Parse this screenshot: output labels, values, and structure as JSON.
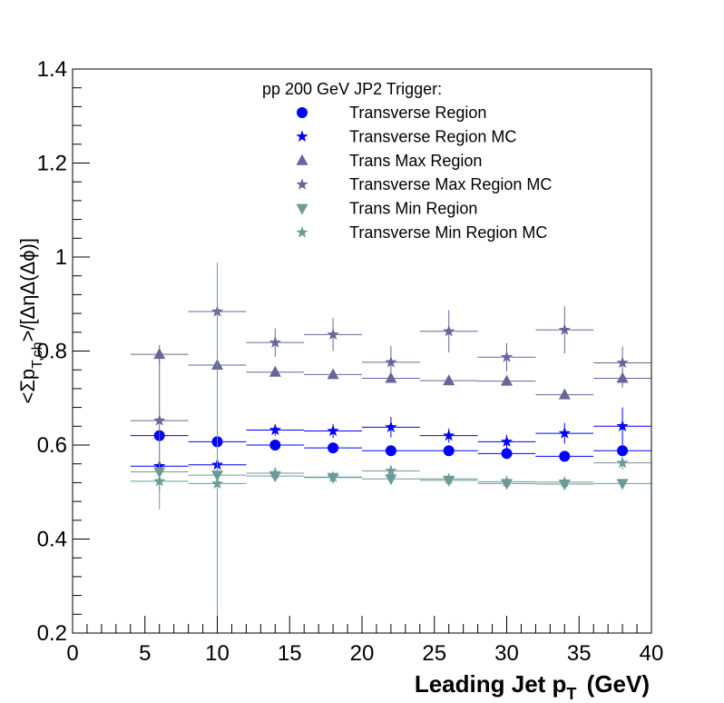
{
  "chart_data": {
    "type": "scatter",
    "title": "",
    "xlabel": "Leading Jet p",
    "xlabel_sub": "T",
    "xlabel_unit": "(GeV)",
    "ylabel": "<Σp",
    "ylabel_sub": "T,ch",
    "ylabel_rest": ">/[ΔηΔ(Δϕ)]",
    "xlim": [
      0,
      40
    ],
    "ylim": [
      0.2,
      1.4
    ],
    "x_ticks": [
      "0",
      "5",
      "10",
      "15",
      "20",
      "25",
      "30",
      "35",
      "40"
    ],
    "y_ticks": [
      "0.2",
      "0.4",
      "0.6",
      "0.8",
      "1",
      "1.2",
      "1.4"
    ],
    "grid": false,
    "legend_position": "top-center",
    "legend_title": "pp 200 GeV JP2 Trigger:",
    "series": [
      {
        "name": "Transverse Region",
        "marker": "circle",
        "color": "#0000ff",
        "points": [
          {
            "x": 6,
            "y": 0.62,
            "xerr": 2,
            "yerr": 0.01
          },
          {
            "x": 10,
            "y": 0.607,
            "xerr": 2,
            "yerr": 0.008
          },
          {
            "x": 14,
            "y": 0.6,
            "xerr": 2,
            "yerr": 0.006
          },
          {
            "x": 18,
            "y": 0.594,
            "xerr": 2,
            "yerr": 0.005
          },
          {
            "x": 22,
            "y": 0.588,
            "xerr": 2,
            "yerr": 0.005
          },
          {
            "x": 26,
            "y": 0.588,
            "xerr": 2,
            "yerr": 0.005
          },
          {
            "x": 30,
            "y": 0.582,
            "xerr": 2,
            "yerr": 0.005
          },
          {
            "x": 34,
            "y": 0.576,
            "xerr": 2,
            "yerr": 0.005
          },
          {
            "x": 38,
            "y": 0.588,
            "xerr": 2,
            "yerr": 0.006
          }
        ]
      },
      {
        "name": "Transverse Region MC",
        "marker": "star",
        "color": "#0000ff",
        "points": [
          {
            "x": 6,
            "y": 0.555,
            "xerr": 2,
            "yerr": 0.01
          },
          {
            "x": 10,
            "y": 0.558,
            "xerr": 2,
            "yerr": 0.012
          },
          {
            "x": 14,
            "y": 0.632,
            "xerr": 2,
            "yerr": 0.012
          },
          {
            "x": 18,
            "y": 0.63,
            "xerr": 2,
            "yerr": 0.015
          },
          {
            "x": 22,
            "y": 0.638,
            "xerr": 2,
            "yerr": 0.022
          },
          {
            "x": 26,
            "y": 0.62,
            "xerr": 2,
            "yerr": 0.015
          },
          {
            "x": 30,
            "y": 0.607,
            "xerr": 2,
            "yerr": 0.015
          },
          {
            "x": 34,
            "y": 0.625,
            "xerr": 2,
            "yerr": 0.022
          },
          {
            "x": 38,
            "y": 0.64,
            "xerr": 2,
            "yerr": 0.04
          }
        ]
      },
      {
        "name": "Trans Max Region",
        "marker": "triangle-up",
        "color": "#66669a",
        "points": [
          {
            "x": 6,
            "y": 0.793,
            "xerr": 2,
            "yerr": 0.02
          },
          {
            "x": 10,
            "y": 0.77,
            "xerr": 2,
            "yerr": 0.012
          },
          {
            "x": 14,
            "y": 0.755,
            "xerr": 2,
            "yerr": 0.008
          },
          {
            "x": 18,
            "y": 0.75,
            "xerr": 2,
            "yerr": 0.007
          },
          {
            "x": 22,
            "y": 0.742,
            "xerr": 2,
            "yerr": 0.007
          },
          {
            "x": 26,
            "y": 0.737,
            "xerr": 2,
            "yerr": 0.007
          },
          {
            "x": 30,
            "y": 0.736,
            "xerr": 2,
            "yerr": 0.007
          },
          {
            "x": 34,
            "y": 0.707,
            "xerr": 2,
            "yerr": 0.008
          },
          {
            "x": 38,
            "y": 0.742,
            "xerr": 2,
            "yerr": 0.02
          }
        ]
      },
      {
        "name": "Transverse Max Region MC",
        "marker": "star",
        "color": "#66669a",
        "points": [
          {
            "x": 6,
            "y": 0.652,
            "xerr": 2,
            "yerr": 0.15
          },
          {
            "x": 10,
            "y": 0.884,
            "xerr": 2,
            "yerr": 0.015
          },
          {
            "x": 14,
            "y": 0.818,
            "xerr": 2,
            "yerr": 0.03
          },
          {
            "x": 18,
            "y": 0.835,
            "xerr": 2,
            "yerr": 0.035
          },
          {
            "x": 22,
            "y": 0.776,
            "xerr": 2,
            "yerr": 0.035
          },
          {
            "x": 26,
            "y": 0.842,
            "xerr": 2,
            "yerr": 0.045
          },
          {
            "x": 30,
            "y": 0.787,
            "xerr": 2,
            "yerr": 0.03
          },
          {
            "x": 34,
            "y": 0.845,
            "xerr": 2,
            "yerr": 0.05
          },
          {
            "x": 38,
            "y": 0.775,
            "xerr": 2,
            "yerr": 0.035
          }
        ]
      },
      {
        "name": "Trans Min Region",
        "marker": "triangle-down",
        "color": "#6b9a98",
        "points": [
          {
            "x": 6,
            "y": 0.543,
            "xerr": 2,
            "yerr": 0.008
          },
          {
            "x": 10,
            "y": 0.536,
            "xerr": 2,
            "yerr": 0.006
          },
          {
            "x": 14,
            "y": 0.534,
            "xerr": 2,
            "yerr": 0.005
          },
          {
            "x": 18,
            "y": 0.531,
            "xerr": 2,
            "yerr": 0.005
          },
          {
            "x": 22,
            "y": 0.528,
            "xerr": 2,
            "yerr": 0.005
          },
          {
            "x": 26,
            "y": 0.525,
            "xerr": 2,
            "yerr": 0.005
          },
          {
            "x": 30,
            "y": 0.518,
            "xerr": 2,
            "yerr": 0.005
          },
          {
            "x": 34,
            "y": 0.517,
            "xerr": 2,
            "yerr": 0.005
          },
          {
            "x": 38,
            "y": 0.518,
            "xerr": 2,
            "yerr": 0.006
          }
        ]
      },
      {
        "name": "Transverse Min Region MC",
        "marker": "star",
        "color": "#6b9a98",
        "points": [
          {
            "x": 6,
            "y": 0.523,
            "xerr": 2,
            "yerr": 0.06
          },
          {
            "x": 10,
            "y": 0.518,
            "xerr": 2,
            "yerr": 0.47
          },
          {
            "x": 14,
            "y": 0.54,
            "xerr": 2,
            "yerr": 0.01
          },
          {
            "x": 18,
            "y": 0.532,
            "xerr": 2,
            "yerr": 0.008
          },
          {
            "x": 22,
            "y": 0.545,
            "xerr": 2,
            "yerr": 0.01
          },
          {
            "x": 26,
            "y": 0.528,
            "xerr": 2,
            "yerr": 0.008
          },
          {
            "x": 30,
            "y": 0.522,
            "xerr": 2,
            "yerr": 0.008
          },
          {
            "x": 34,
            "y": 0.521,
            "xerr": 2,
            "yerr": 0.008
          },
          {
            "x": 38,
            "y": 0.562,
            "xerr": 2,
            "yerr": 0.015
          }
        ]
      }
    ]
  }
}
